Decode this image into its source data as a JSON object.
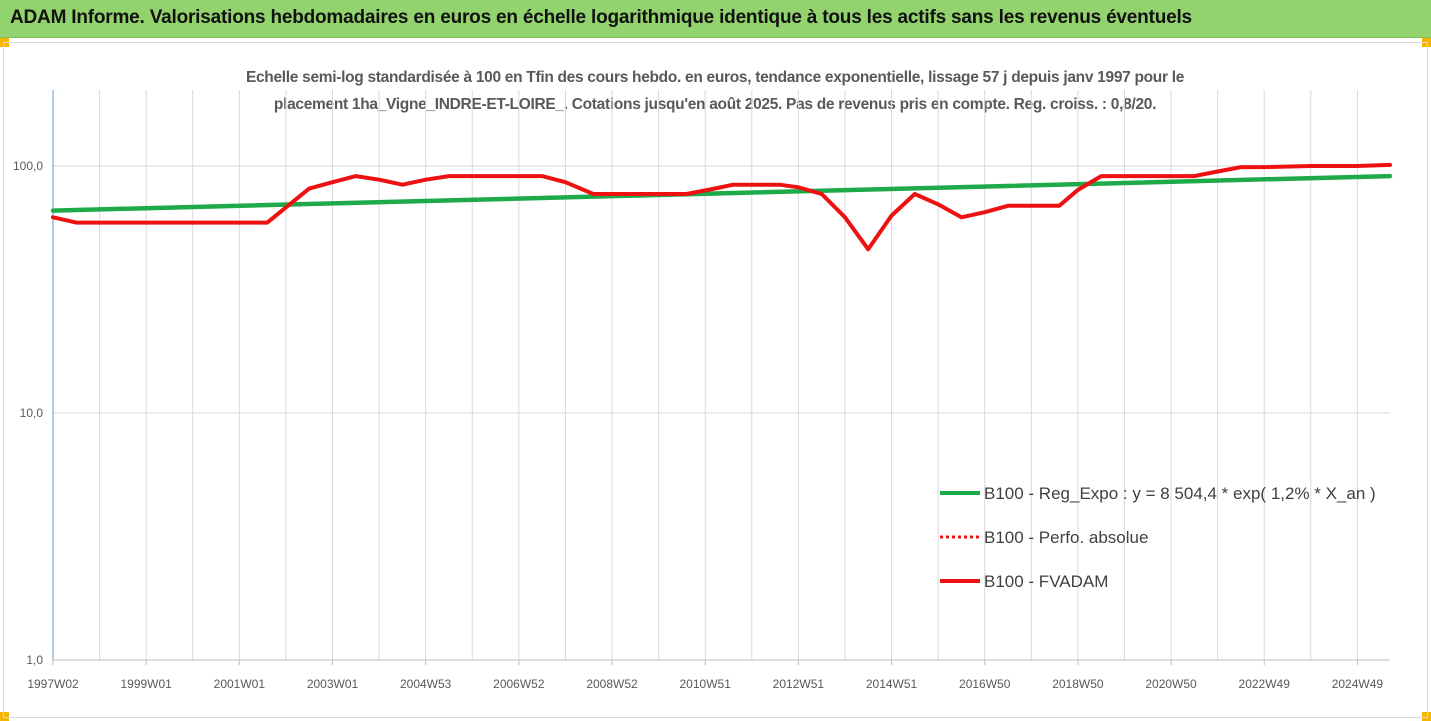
{
  "header": {
    "title": "ADAM Informe. Valorisations hebdomadaires en euros en échelle logarithmique identique à tous les actifs sans les revenus éventuels"
  },
  "colors": {
    "banner": "#92d36e",
    "accent": "#f4b400",
    "trend": "#1faa4a",
    "series": "#ee1111",
    "grid": "#d9d9d9"
  },
  "chart_data": {
    "type": "line",
    "subtitle_line1": "Echelle semi-log standardisée à 100 en Tfin des cours hebdo. en euros, tendance exponentielle, lissage 57 j depuis janv 1997 pour le",
    "subtitle_line2": "placement 1ha_Vigne_INDRE-ET-LOIRE_. Cotations jusqu'en août 2025. Pas de revenus pris en compte. Reg. croiss. : 0,8/20.",
    "y_scale": "log",
    "ylim": [
      1,
      200
    ],
    "y_ticks": [
      {
        "value": 1,
        "label": "1,0"
      },
      {
        "value": 10,
        "label": "10,0"
      },
      {
        "value": 100,
        "label": "100,0"
      }
    ],
    "x_range": [
      1997.0,
      2025.7
    ],
    "x_ticks": [
      {
        "year": 1997.0,
        "label": "1997W02"
      },
      {
        "year": 1999.0,
        "label": "1999W01"
      },
      {
        "year": 2001.0,
        "label": "2001W01"
      },
      {
        "year": 2003.0,
        "label": "2003W01"
      },
      {
        "year": 2005.0,
        "label": "2004W53"
      },
      {
        "year": 2007.0,
        "label": "2006W52"
      },
      {
        "year": 2009.0,
        "label": "2008W52"
      },
      {
        "year": 2011.0,
        "label": "2010W51"
      },
      {
        "year": 2013.0,
        "label": "2012W51"
      },
      {
        "year": 2015.0,
        "label": "2014W51"
      },
      {
        "year": 2017.0,
        "label": "2016W50"
      },
      {
        "year": 2019.0,
        "label": "2018W50"
      },
      {
        "year": 2021.0,
        "label": "2020W50"
      },
      {
        "year": 2023.0,
        "label": "2022W49"
      },
      {
        "year": 2025.0,
        "label": "2024W49"
      }
    ],
    "legend_position": "lower-right",
    "legend": [
      {
        "key": "trend",
        "label": "B100 - Reg_Expo : y = 8 504,4 * exp( 1,2% *  X_an )",
        "style": "solid"
      },
      {
        "key": "perfo",
        "label": "B100 - Perfo. absolue",
        "style": "dotted"
      },
      {
        "key": "fvadam",
        "label": "B100 - FVADAM",
        "style": "solid"
      }
    ],
    "series": [
      {
        "key": "trend",
        "points": [
          [
            1997.0,
            66
          ],
          [
            2025.7,
            91
          ]
        ]
      },
      {
        "key": "fvadam",
        "points": [
          [
            1997.0,
            62
          ],
          [
            1997.5,
            59
          ],
          [
            1998.0,
            59
          ],
          [
            1999.0,
            59
          ],
          [
            2000.0,
            59
          ],
          [
            2001.0,
            59
          ],
          [
            2001.6,
            59
          ],
          [
            2002.0,
            68
          ],
          [
            2002.5,
            81
          ],
          [
            2003.0,
            86
          ],
          [
            2003.5,
            91
          ],
          [
            2004.0,
            88
          ],
          [
            2004.5,
            84
          ],
          [
            2005.0,
            88
          ],
          [
            2005.5,
            91
          ],
          [
            2006.0,
            91
          ],
          [
            2007.0,
            91
          ],
          [
            2007.5,
            91
          ],
          [
            2008.0,
            86
          ],
          [
            2008.6,
            77
          ],
          [
            2009.0,
            77
          ],
          [
            2010.0,
            77
          ],
          [
            2010.6,
            77
          ],
          [
            2011.2,
            81
          ],
          [
            2011.6,
            84
          ],
          [
            2012.0,
            84
          ],
          [
            2012.6,
            84
          ],
          [
            2013.0,
            82
          ],
          [
            2013.5,
            77
          ],
          [
            2014.0,
            62
          ],
          [
            2014.5,
            46
          ],
          [
            2015.0,
            63
          ],
          [
            2015.5,
            77
          ],
          [
            2016.0,
            70
          ],
          [
            2016.5,
            62
          ],
          [
            2017.0,
            65
          ],
          [
            2017.5,
            69
          ],
          [
            2018.0,
            69
          ],
          [
            2018.6,
            69
          ],
          [
            2019.0,
            80
          ],
          [
            2019.5,
            91
          ],
          [
            2020.0,
            91
          ],
          [
            2021.0,
            91
          ],
          [
            2021.5,
            91
          ],
          [
            2022.0,
            95
          ],
          [
            2022.5,
            99
          ],
          [
            2023.0,
            99
          ],
          [
            2024.0,
            100
          ],
          [
            2025.0,
            100
          ],
          [
            2025.7,
            101
          ]
        ]
      }
    ]
  }
}
